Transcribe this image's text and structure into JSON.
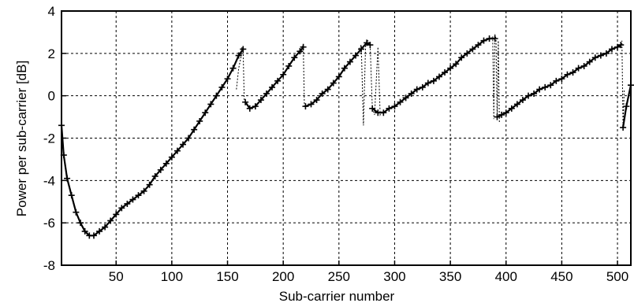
{
  "chart_data": {
    "type": "line",
    "xlabel": "Sub-carrier number",
    "ylabel": "Power per sub-carrier [dB]",
    "xlim": [
      1,
      512
    ],
    "ylim": [
      -8,
      4
    ],
    "xticks": [
      50,
      100,
      150,
      200,
      250,
      300,
      350,
      400,
      450,
      500
    ],
    "yticks": [
      -8,
      -6,
      -4,
      -2,
      0,
      2,
      4
    ],
    "grid": true,
    "marker": "+",
    "series": [
      {
        "segments": [
          [
            [
              1,
              -1.4
            ],
            [
              3,
              -2.8
            ],
            [
              6,
              -3.9
            ],
            [
              10,
              -4.7
            ],
            [
              14,
              -5.5
            ],
            [
              18,
              -6.0
            ],
            [
              22,
              -6.4
            ],
            [
              26,
              -6.6
            ],
            [
              30,
              -6.6
            ],
            [
              35,
              -6.4
            ],
            [
              40,
              -6.2
            ],
            [
              45,
              -5.9
            ],
            [
              50,
              -5.6
            ],
            [
              55,
              -5.3
            ],
            [
              60,
              -5.1
            ],
            [
              65,
              -4.9
            ],
            [
              70,
              -4.7
            ],
            [
              75,
              -4.5
            ],
            [
              80,
              -4.2
            ],
            [
              85,
              -3.8
            ],
            [
              90,
              -3.5
            ],
            [
              95,
              -3.2
            ],
            [
              100,
              -2.9
            ],
            [
              105,
              -2.6
            ],
            [
              110,
              -2.3
            ],
            [
              115,
              -2.0
            ],
            [
              120,
              -1.6
            ],
            [
              125,
              -1.2
            ],
            [
              130,
              -0.8
            ],
            [
              135,
              -0.4
            ],
            [
              140,
              0.0
            ],
            [
              145,
              0.4
            ],
            [
              150,
              0.8
            ],
            [
              155,
              1.3
            ],
            [
              160,
              1.9
            ],
            [
              164,
              2.2
            ]
          ],
          [
            [
              166,
              -0.3
            ],
            [
              170,
              -0.6
            ],
            [
              175,
              -0.5
            ],
            [
              180,
              -0.2
            ],
            [
              185,
              0.1
            ],
            [
              190,
              0.4
            ],
            [
              195,
              0.7
            ],
            [
              200,
              1.0
            ],
            [
              205,
              1.4
            ],
            [
              210,
              1.8
            ],
            [
              215,
              2.1
            ],
            [
              218,
              2.3
            ]
          ],
          [
            [
              220,
              -0.5
            ],
            [
              225,
              -0.4
            ],
            [
              230,
              -0.2
            ],
            [
              235,
              0.1
            ],
            [
              240,
              0.3
            ],
            [
              245,
              0.6
            ],
            [
              250,
              0.9
            ],
            [
              255,
              1.3
            ],
            [
              260,
              1.6
            ],
            [
              265,
              1.9
            ],
            [
              270,
              2.2
            ],
            [
              275,
              2.5
            ],
            [
              278,
              2.4
            ]
          ],
          [
            [
              280,
              -0.6
            ],
            [
              285,
              -0.8
            ],
            [
              290,
              -0.8
            ],
            [
              295,
              -0.6
            ],
            [
              300,
              -0.5
            ],
            [
              305,
              -0.3
            ],
            [
              310,
              -0.1
            ],
            [
              315,
              0.1
            ],
            [
              320,
              0.3
            ],
            [
              325,
              0.4
            ],
            [
              330,
              0.6
            ],
            [
              335,
              0.7
            ],
            [
              340,
              0.9
            ],
            [
              345,
              1.1
            ],
            [
              350,
              1.3
            ],
            [
              355,
              1.5
            ],
            [
              360,
              1.8
            ],
            [
              365,
              2.0
            ],
            [
              370,
              2.2
            ],
            [
              375,
              2.4
            ],
            [
              380,
              2.6
            ],
            [
              385,
              2.7
            ],
            [
              390,
              2.7
            ]
          ],
          [
            [
              392,
              -1.0
            ],
            [
              396,
              -0.9
            ],
            [
              400,
              -0.8
            ],
            [
              405,
              -0.6
            ],
            [
              410,
              -0.4
            ],
            [
              415,
              -0.2
            ],
            [
              420,
              0.0
            ],
            [
              425,
              0.1
            ],
            [
              430,
              0.3
            ],
            [
              435,
              0.4
            ],
            [
              440,
              0.5
            ],
            [
              445,
              0.7
            ],
            [
              450,
              0.8
            ],
            [
              455,
              1.0
            ],
            [
              460,
              1.1
            ],
            [
              465,
              1.3
            ],
            [
              470,
              1.4
            ],
            [
              475,
              1.6
            ],
            [
              480,
              1.8
            ],
            [
              485,
              1.9
            ],
            [
              490,
              2.0
            ],
            [
              495,
              2.2
            ],
            [
              500,
              2.3
            ],
            [
              503,
              2.4
            ]
          ],
          [
            [
              505,
              -1.5
            ],
            [
              508,
              -0.5
            ],
            [
              512,
              0.5
            ]
          ]
        ],
        "spikes": [
          [
            [
              158,
              0.3
            ],
            [
              160,
              1.3
            ],
            [
              162,
              1.8
            ],
            [
              163,
              2.3
            ],
            [
              164,
              2.2
            ],
            [
              165,
              -0.2
            ],
            [
              166,
              -0.3
            ]
          ],
          [
            [
              216,
              2.0
            ],
            [
              217,
              2.3
            ],
            [
              218,
              2.4
            ],
            [
              219,
              -0.5
            ],
            [
              220,
              -0.5
            ]
          ],
          [
            [
              268,
              2.2
            ],
            [
              270,
              2.4
            ],
            [
              272,
              -1.4
            ],
            [
              274,
              2.5
            ],
            [
              276,
              2.6
            ],
            [
              278,
              2.4
            ],
            [
              280,
              -0.6
            ],
            [
              282,
              -0.9
            ],
            [
              285,
              2.3
            ],
            [
              287,
              -0.9
            ],
            [
              289,
              -0.7
            ]
          ],
          [
            [
              386,
              2.7
            ],
            [
              388,
              2.8
            ],
            [
              389,
              -1.1
            ],
            [
              390,
              2.9
            ],
            [
              391,
              2.7
            ],
            [
              392,
              -1.0
            ],
            [
              393,
              2.6
            ],
            [
              394,
              -1.3
            ]
          ],
          [
            [
              502,
              2.3
            ],
            [
              503,
              2.4
            ],
            [
              504,
              2.6
            ],
            [
              505,
              -1.5
            ],
            [
              506,
              0.3
            ]
          ]
        ]
      }
    ]
  }
}
